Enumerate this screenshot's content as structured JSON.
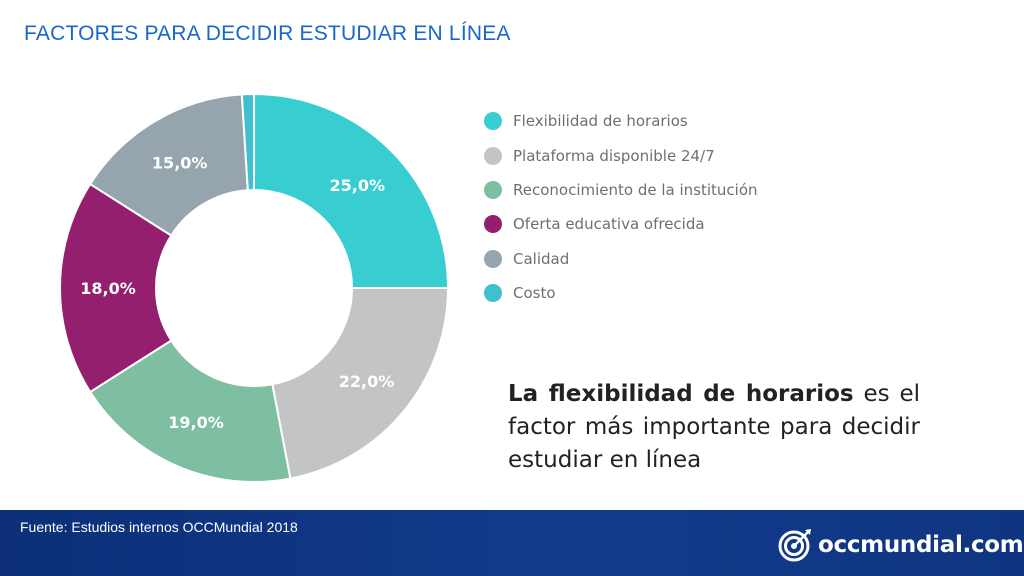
{
  "header": {
    "title": "FACTORES PARA DECIDIR ESTUDIAR EN LÍNEA"
  },
  "chart_data": {
    "type": "pie",
    "subtype": "donut",
    "categories": [
      "Flexibilidad de horarios",
      "Plataforma disponible 24/7",
      "Reconocimiento de la institución",
      "Oferta educativa ofrecida",
      "Calidad",
      "Costo"
    ],
    "values": [
      25.0,
      22.0,
      19.0,
      18.0,
      15.0,
      1.0
    ],
    "value_labels": [
      "25,0%",
      "22,0%",
      "19,0%",
      "18,0%",
      "15,0%",
      ""
    ],
    "colors": [
      "#38cdd0",
      "#c2c4c6",
      "#7ebfa1",
      "#941f6e",
      "#95a4ad",
      "#3fbfcf"
    ],
    "legend_position": "right",
    "title": ""
  },
  "takeaway": {
    "bold": "La flexibilidad de horarios",
    "rest": " es el factor más importante para decidir estudiar en línea"
  },
  "footer": {
    "source": "Fuente: Estudios internos OCCMundial 2018",
    "logo_text": "occmundial.com",
    "logo_icon": "target-icon"
  }
}
